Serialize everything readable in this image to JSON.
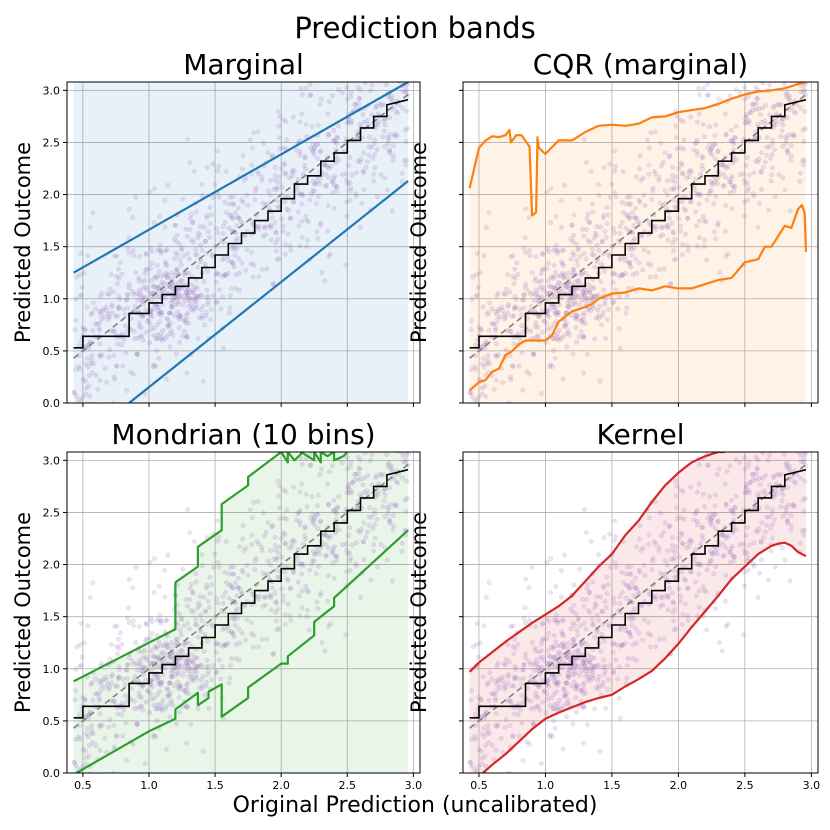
{
  "figure": {
    "suptitle": "Prediction bands",
    "xlabel": "Original Prediction (uncalibrated)",
    "ylabel": "Predicted Outcome",
    "colors": {
      "scatter": "#9467bd",
      "step": "#000000",
      "diag": "#808080",
      "grid": "#b0b0b0"
    }
  },
  "chart_data": [
    {
      "type": "line",
      "title": "Marginal",
      "xlabel": "",
      "ylabel": "Predicted Outcome",
      "xlim": [
        0.38,
        3.05
      ],
      "ylim": [
        0.0,
        3.08
      ],
      "xticks": [
        "0.5",
        "1.0",
        "1.5",
        "2.0",
        "2.5",
        "3.0"
      ],
      "yticks": [
        "0.0",
        "0.5",
        "1.0",
        "1.5",
        "2.0",
        "2.5",
        "3.0"
      ],
      "xtick_values": [
        0.5,
        1.0,
        1.5,
        2.0,
        2.5,
        3.0
      ],
      "ytick_values": [
        0.0,
        0.5,
        1.0,
        1.5,
        2.0,
        2.5,
        3.0
      ],
      "show_xtick_labels": false,
      "color": "#1f77b4",
      "fill": "#1f77b4",
      "upper": {
        "x": [
          0.43,
          2.96
        ],
        "y": [
          1.25,
          3.08
        ]
      },
      "lower": {
        "x": [
          0.85,
          2.96
        ],
        "y": [
          0.0,
          2.13
        ]
      },
      "fill_upper": {
        "x": [
          0.43,
          2.96
        ],
        "y": [
          3.08,
          3.08
        ]
      },
      "fill_lower": {
        "x": [
          0.43,
          2.96
        ],
        "y": [
          0.0,
          0.0
        ]
      }
    },
    {
      "type": "line",
      "title": "CQR (marginal)",
      "xlabel": "",
      "ylabel": "Predicted Outcome",
      "xlim": [
        0.38,
        3.05
      ],
      "ylim": [
        0.0,
        3.08
      ],
      "xticks": [
        "0.5",
        "1.0",
        "1.5",
        "2.0",
        "2.5",
        "3.0"
      ],
      "yticks": [
        "0.0",
        "0.5",
        "1.0",
        "1.5",
        "2.0",
        "2.5",
        "3.0"
      ],
      "xtick_values": [
        0.5,
        1.0,
        1.5,
        2.0,
        2.5,
        3.0
      ],
      "ytick_values": [
        0.0,
        0.5,
        1.0,
        1.5,
        2.0,
        2.5,
        3.0
      ],
      "show_xtick_labels": false,
      "color": "#ff7f0e",
      "fill": "#ff7f0e",
      "upper": {
        "x": [
          0.43,
          0.5,
          0.55,
          0.6,
          0.65,
          0.7,
          0.73,
          0.74,
          0.78,
          0.82,
          0.88,
          0.9,
          0.93,
          0.94,
          0.95,
          1.0,
          1.1,
          1.2,
          1.3,
          1.4,
          1.5,
          1.6,
          1.7,
          1.8,
          1.9,
          2.0,
          2.1,
          2.2,
          2.3,
          2.4,
          2.5,
          2.6,
          2.7,
          2.8,
          2.9,
          2.96
        ],
        "y": [
          2.06,
          2.45,
          2.52,
          2.56,
          2.55,
          2.57,
          2.62,
          2.5,
          2.57,
          2.57,
          2.46,
          1.8,
          1.83,
          2.55,
          2.45,
          2.39,
          2.52,
          2.52,
          2.6,
          2.66,
          2.67,
          2.66,
          2.68,
          2.74,
          2.75,
          2.79,
          2.81,
          2.83,
          2.87,
          2.92,
          2.96,
          2.99,
          3.0,
          3.02,
          3.06,
          3.08
        ]
      },
      "lower": {
        "x": [
          0.43,
          0.5,
          0.55,
          0.6,
          0.65,
          0.7,
          0.75,
          0.8,
          0.85,
          0.9,
          1.0,
          1.05,
          1.1,
          1.2,
          1.3,
          1.35,
          1.4,
          1.5,
          1.6,
          1.7,
          1.8,
          1.9,
          2.0,
          2.1,
          2.2,
          2.3,
          2.4,
          2.5,
          2.6,
          2.65,
          2.7,
          2.75,
          2.8,
          2.85,
          2.9,
          2.93,
          2.95,
          2.96
        ],
        "y": [
          0.12,
          0.2,
          0.22,
          0.3,
          0.33,
          0.46,
          0.5,
          0.56,
          0.6,
          0.6,
          0.6,
          0.65,
          0.78,
          0.88,
          0.92,
          0.95,
          1.0,
          1.05,
          1.06,
          1.1,
          1.08,
          1.12,
          1.1,
          1.1,
          1.14,
          1.18,
          1.2,
          1.35,
          1.38,
          1.5,
          1.5,
          1.6,
          1.7,
          1.68,
          1.86,
          1.9,
          1.82,
          1.45
        ]
      },
      "fill_upper": {
        "x": [
          0.43,
          0.5,
          0.55,
          0.6,
          0.65,
          0.7,
          0.73,
          0.74,
          0.78,
          0.82,
          0.88,
          0.9,
          0.93,
          0.94,
          0.95,
          1.0,
          1.1,
          1.2,
          1.3,
          1.4,
          1.5,
          1.6,
          1.7,
          1.8,
          1.9,
          2.0,
          2.1,
          2.2,
          2.3,
          2.4,
          2.5,
          2.6,
          2.7,
          2.8,
          2.9,
          2.96
        ],
        "y": [
          2.06,
          2.45,
          2.52,
          2.56,
          2.55,
          2.57,
          2.62,
          2.5,
          2.57,
          2.57,
          2.46,
          1.8,
          1.83,
          2.55,
          2.45,
          2.39,
          2.52,
          2.52,
          2.6,
          2.66,
          2.67,
          2.66,
          2.68,
          2.74,
          2.75,
          2.79,
          2.81,
          2.83,
          2.87,
          2.92,
          2.96,
          2.99,
          3.0,
          3.02,
          3.06,
          3.08
        ]
      },
      "fill_lower": {
        "x": [
          0.43,
          2.96
        ],
        "y": [
          0.0,
          0.0
        ]
      }
    },
    {
      "type": "line",
      "title": "Mondrian (10 bins)",
      "xlabel": "",
      "ylabel": "Predicted Outcome",
      "xlim": [
        0.38,
        3.05
      ],
      "ylim": [
        0.0,
        3.08
      ],
      "xticks": [
        "0.5",
        "1.0",
        "1.5",
        "2.0",
        "2.5",
        "3.0"
      ],
      "yticks": [
        "0.0",
        "0.5",
        "1.0",
        "1.5",
        "2.0",
        "2.5",
        "3.0"
      ],
      "xtick_values": [
        0.5,
        1.0,
        1.5,
        2.0,
        2.5,
        3.0
      ],
      "ytick_values": [
        0.0,
        0.5,
        1.0,
        1.5,
        2.0,
        2.5,
        3.0
      ],
      "show_xtick_labels": true,
      "color": "#2ca02c",
      "fill": "#2ca02c",
      "upper": {
        "x": [
          0.43,
          1.0,
          1.2,
          1.2,
          1.37,
          1.37,
          1.55,
          1.55,
          1.75,
          1.75,
          2.0,
          2.05,
          2.05,
          2.1,
          2.15,
          2.15,
          2.25,
          2.25,
          2.3,
          2.3,
          2.35,
          2.4,
          2.4,
          2.47,
          2.5
        ],
        "y": [
          0.88,
          1.25,
          1.38,
          1.83,
          1.98,
          2.17,
          2.33,
          2.58,
          2.76,
          2.84,
          3.08,
          2.98,
          3.08,
          3.0,
          3.06,
          3.08,
          3.0,
          3.08,
          2.98,
          3.08,
          3.04,
          3.08,
          3.0,
          3.04,
          3.08
        ]
      },
      "lower": {
        "x": [
          0.45,
          1.0,
          1.2,
          1.2,
          1.37,
          1.37,
          1.45,
          1.45,
          1.55,
          1.55,
          1.75,
          1.75,
          2.0,
          2.05,
          2.05,
          2.25,
          2.25,
          2.4,
          2.4,
          2.96
        ],
        "y": [
          0.0,
          0.4,
          0.52,
          0.61,
          0.77,
          0.65,
          0.72,
          0.78,
          0.85,
          0.54,
          0.72,
          0.82,
          1.05,
          1.05,
          1.12,
          1.32,
          1.45,
          1.6,
          1.68,
          2.33
        ]
      },
      "fill_upper": {
        "x": [
          0.43,
          1.0,
          1.2,
          1.2,
          1.37,
          1.37,
          1.55,
          1.55,
          1.75,
          1.75,
          2.0,
          2.96
        ],
        "y": [
          0.88,
          1.25,
          1.38,
          1.83,
          1.98,
          2.17,
          2.33,
          2.58,
          2.76,
          2.84,
          3.08,
          3.08
        ]
      },
      "fill_lower": {
        "x": [
          0.43,
          2.96
        ],
        "y": [
          0.0,
          0.0
        ]
      }
    },
    {
      "type": "line",
      "title": "Kernel",
      "xlabel": "",
      "ylabel": "Predicted Outcome",
      "xlim": [
        0.38,
        3.05
      ],
      "ylim": [
        0.0,
        3.08
      ],
      "xticks": [
        "0.5",
        "1.0",
        "1.5",
        "2.0",
        "2.5",
        "3.0"
      ],
      "yticks": [
        "0.0",
        "0.5",
        "1.0",
        "1.5",
        "2.0",
        "2.5",
        "3.0"
      ],
      "xtick_values": [
        0.5,
        1.0,
        1.5,
        2.0,
        2.5,
        3.0
      ],
      "ytick_values": [
        0.0,
        0.5,
        1.0,
        1.5,
        2.0,
        2.5,
        3.0
      ],
      "show_xtick_labels": true,
      "color": "#d62728",
      "fill": "#d62728",
      "upper": {
        "x": [
          0.43,
          0.5,
          0.6,
          0.7,
          0.8,
          0.9,
          1.0,
          1.1,
          1.2,
          1.3,
          1.4,
          1.5,
          1.6,
          1.7,
          1.8,
          1.9,
          2.0,
          2.1,
          2.2,
          2.3,
          2.35
        ],
        "y": [
          0.97,
          1.06,
          1.16,
          1.26,
          1.35,
          1.44,
          1.52,
          1.6,
          1.7,
          1.84,
          1.98,
          2.1,
          2.28,
          2.42,
          2.6,
          2.76,
          2.88,
          2.98,
          3.04,
          3.08,
          3.08
        ]
      },
      "lower": {
        "x": [
          0.53,
          0.6,
          0.7,
          0.8,
          0.9,
          1.0,
          1.1,
          1.2,
          1.3,
          1.4,
          1.5,
          1.6,
          1.7,
          1.8,
          1.9,
          2.0,
          2.1,
          2.2,
          2.3,
          2.4,
          2.5,
          2.6,
          2.7,
          2.75,
          2.8,
          2.85,
          2.9,
          2.96
        ],
        "y": [
          0.0,
          0.08,
          0.18,
          0.3,
          0.42,
          0.52,
          0.58,
          0.63,
          0.68,
          0.72,
          0.75,
          0.83,
          0.9,
          0.98,
          1.1,
          1.24,
          1.4,
          1.55,
          1.7,
          1.86,
          1.98,
          2.1,
          2.18,
          2.2,
          2.21,
          2.18,
          2.12,
          2.08
        ]
      },
      "fill_upper": {
        "x": [
          0.43,
          0.5,
          0.6,
          0.7,
          0.8,
          0.9,
          1.0,
          1.1,
          1.2,
          1.3,
          1.4,
          1.5,
          1.6,
          1.7,
          1.8,
          1.9,
          2.0,
          2.1,
          2.2,
          2.3,
          2.96
        ],
        "y": [
          0.97,
          1.06,
          1.16,
          1.26,
          1.35,
          1.44,
          1.52,
          1.6,
          1.7,
          1.84,
          1.98,
          2.1,
          2.28,
          2.42,
          2.6,
          2.76,
          2.88,
          2.98,
          3.04,
          3.08,
          3.08
        ]
      },
      "fill_lower": {
        "x": [
          0.43,
          0.53,
          0.6,
          0.7,
          0.8,
          0.9,
          1.0,
          1.1,
          1.2,
          1.3,
          1.4,
          1.5,
          1.6,
          1.7,
          1.8,
          1.9,
          2.0,
          2.1,
          2.2,
          2.3,
          2.4,
          2.5,
          2.6,
          2.7,
          2.75,
          2.8,
          2.85,
          2.9,
          2.96
        ],
        "y": [
          0.0,
          0.0,
          0.08,
          0.18,
          0.3,
          0.42,
          0.52,
          0.58,
          0.63,
          0.68,
          0.72,
          0.75,
          0.83,
          0.9,
          0.98,
          1.1,
          1.24,
          1.4,
          1.55,
          1.7,
          1.86,
          1.98,
          2.1,
          2.18,
          2.2,
          2.21,
          2.18,
          2.12,
          2.08
        ]
      }
    }
  ],
  "shared_series": {
    "diagonal": {
      "x": [
        0.43,
        2.96
      ],
      "y": [
        0.43,
        2.96
      ]
    },
    "step": {
      "x": [
        0.43,
        0.5,
        0.5,
        0.85,
        0.85,
        1.0,
        1.0,
        1.1,
        1.1,
        1.2,
        1.2,
        1.3,
        1.3,
        1.4,
        1.4,
        1.5,
        1.5,
        1.6,
        1.6,
        1.7,
        1.7,
        1.8,
        1.8,
        1.9,
        1.9,
        2.0,
        2.0,
        2.1,
        2.1,
        2.2,
        2.2,
        2.3,
        2.3,
        2.4,
        2.4,
        2.5,
        2.5,
        2.6,
        2.6,
        2.7,
        2.7,
        2.8,
        2.8,
        2.96
      ],
      "y": [
        0.53,
        0.53,
        0.64,
        0.64,
        0.86,
        0.86,
        0.96,
        0.96,
        1.04,
        1.04,
        1.12,
        1.12,
        1.2,
        1.2,
        1.3,
        1.3,
        1.42,
        1.42,
        1.53,
        1.53,
        1.63,
        1.63,
        1.75,
        1.75,
        1.84,
        1.84,
        1.96,
        1.96,
        2.1,
        2.1,
        2.18,
        2.18,
        2.32,
        2.32,
        2.4,
        2.4,
        2.52,
        2.52,
        2.64,
        2.64,
        2.75,
        2.75,
        2.86,
        2.91
      ]
    },
    "scatter": {
      "seed": 7,
      "n": 900,
      "x_range": [
        0.43,
        2.96
      ],
      "noise_sd": 0.4,
      "cluster": {
        "center": [
          1.2,
          1.0
        ],
        "n": 150,
        "sd": [
          0.15,
          0.18
        ]
      }
    }
  }
}
